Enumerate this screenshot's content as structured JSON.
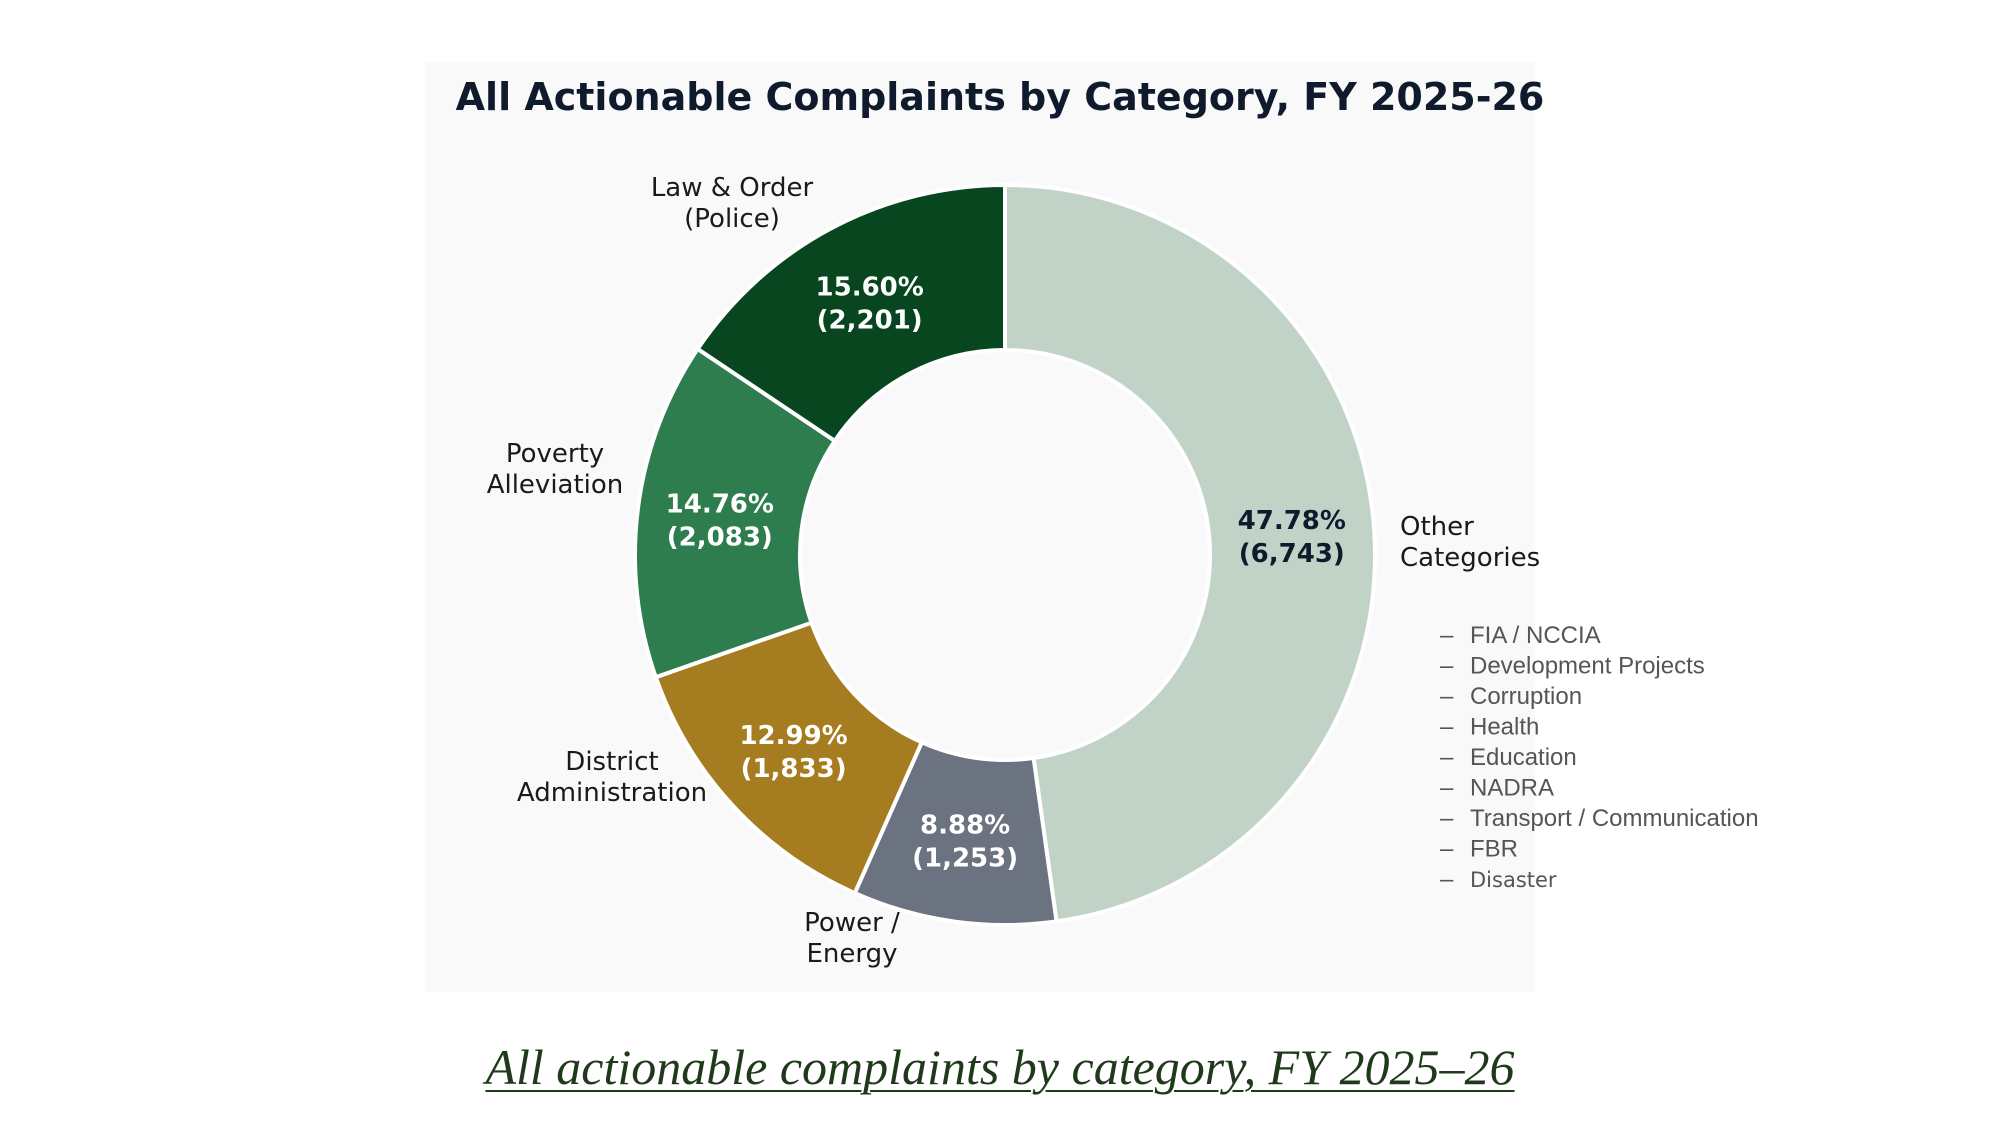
{
  "chart_data": {
    "type": "pie",
    "title": "All Actionable Complaints by Category, FY 2025-26",
    "slices": [
      {
        "label": [
          "Other",
          "Categories"
        ],
        "percent": 47.78,
        "count": 6743,
        "value_text": [
          "47.78%",
          "(6,743)"
        ],
        "color": "#c1d3c6",
        "text_color": "#0f1b2d"
      },
      {
        "label": [
          "Power /",
          "Energy"
        ],
        "percent": 8.88,
        "count": 1253,
        "value_text": [
          "8.88%",
          "(1,253)"
        ],
        "color": "#6b7280",
        "text_color": "#ffffff"
      },
      {
        "label": [
          "District",
          "Administration"
        ],
        "percent": 12.99,
        "count": 1833,
        "value_text": [
          "12.99%",
          "(1,833)"
        ],
        "color": "#a67c20",
        "text_color": "#ffffff"
      },
      {
        "label": [
          "Poverty",
          "Alleviation"
        ],
        "percent": 14.76,
        "count": 2083,
        "value_text": [
          "14.76%",
          "(2,083)"
        ],
        "color": "#2e7d4f",
        "text_color": "#ffffff"
      },
      {
        "label": [
          "Law & Order",
          "(Police)"
        ],
        "percent": 15.6,
        "count": 2201,
        "value_text": [
          "15.60%",
          "(2,201)"
        ],
        "color": "#07461f",
        "text_color": "#ffffff"
      }
    ],
    "other_categories": [
      "FIA / NCCIA",
      "Development Projects",
      "Corruption",
      "Health",
      "Education",
      "NADRA",
      "Transport / Communication",
      "FBR",
      "Disaster"
    ],
    "dash": "–"
  },
  "caption": "All actionable complaints by category, FY 2025–26"
}
